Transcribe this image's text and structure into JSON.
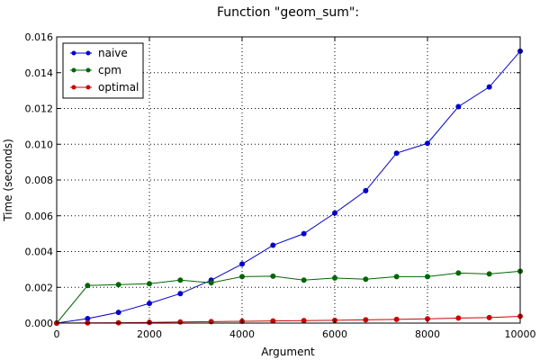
{
  "chart_data": {
    "type": "line",
    "title": "Function \"geom_sum\":",
    "xlabel": "Argument",
    "ylabel": "Time (seconds)",
    "xlim": [
      0,
      10000
    ],
    "ylim": [
      0,
      0.016
    ],
    "x_ticks": [
      0,
      2000,
      4000,
      6000,
      8000,
      10000
    ],
    "x_tick_labels": [
      "0",
      "2000",
      "4000",
      "6000",
      "8000",
      "10000"
    ],
    "y_ticks": [
      0,
      0.002,
      0.004,
      0.006,
      0.008,
      0.01,
      0.012,
      0.014,
      0.016
    ],
    "y_tick_labels": [
      "0.000",
      "0.002",
      "0.004",
      "0.006",
      "0.008",
      "0.010",
      "0.012",
      "0.014",
      "0.016"
    ],
    "grid": true,
    "legend_position": "top-left",
    "x": [
      0,
      667,
      1333,
      2000,
      2667,
      3333,
      4000,
      4667,
      5333,
      6000,
      6667,
      7333,
      8000,
      8667,
      9333,
      10000
    ],
    "series": [
      {
        "name": "naive",
        "color": "#0000cc",
        "values": [
          0.0,
          0.00025,
          0.0006,
          0.0011,
          0.00165,
          0.0024,
          0.0033,
          0.00435,
          0.005,
          0.00615,
          0.0074,
          0.0095,
          0.01005,
          0.0121,
          0.0132,
          0.0152
        ]
      },
      {
        "name": "cpm",
        "color": "#006600",
        "values": [
          0.0,
          0.0021,
          0.00215,
          0.0022,
          0.0024,
          0.00225,
          0.0026,
          0.00262,
          0.0024,
          0.00252,
          0.00245,
          0.0026,
          0.0026,
          0.0028,
          0.00275,
          0.0029
        ]
      },
      {
        "name": "optimal",
        "color": "#cc0000",
        "values": [
          0.0,
          1e-05,
          2e-05,
          4e-05,
          6e-05,
          8e-05,
          0.0001,
          0.00012,
          0.00014,
          0.00016,
          0.00018,
          0.00021,
          0.00024,
          0.00028,
          0.00031,
          0.00038
        ]
      }
    ]
  }
}
